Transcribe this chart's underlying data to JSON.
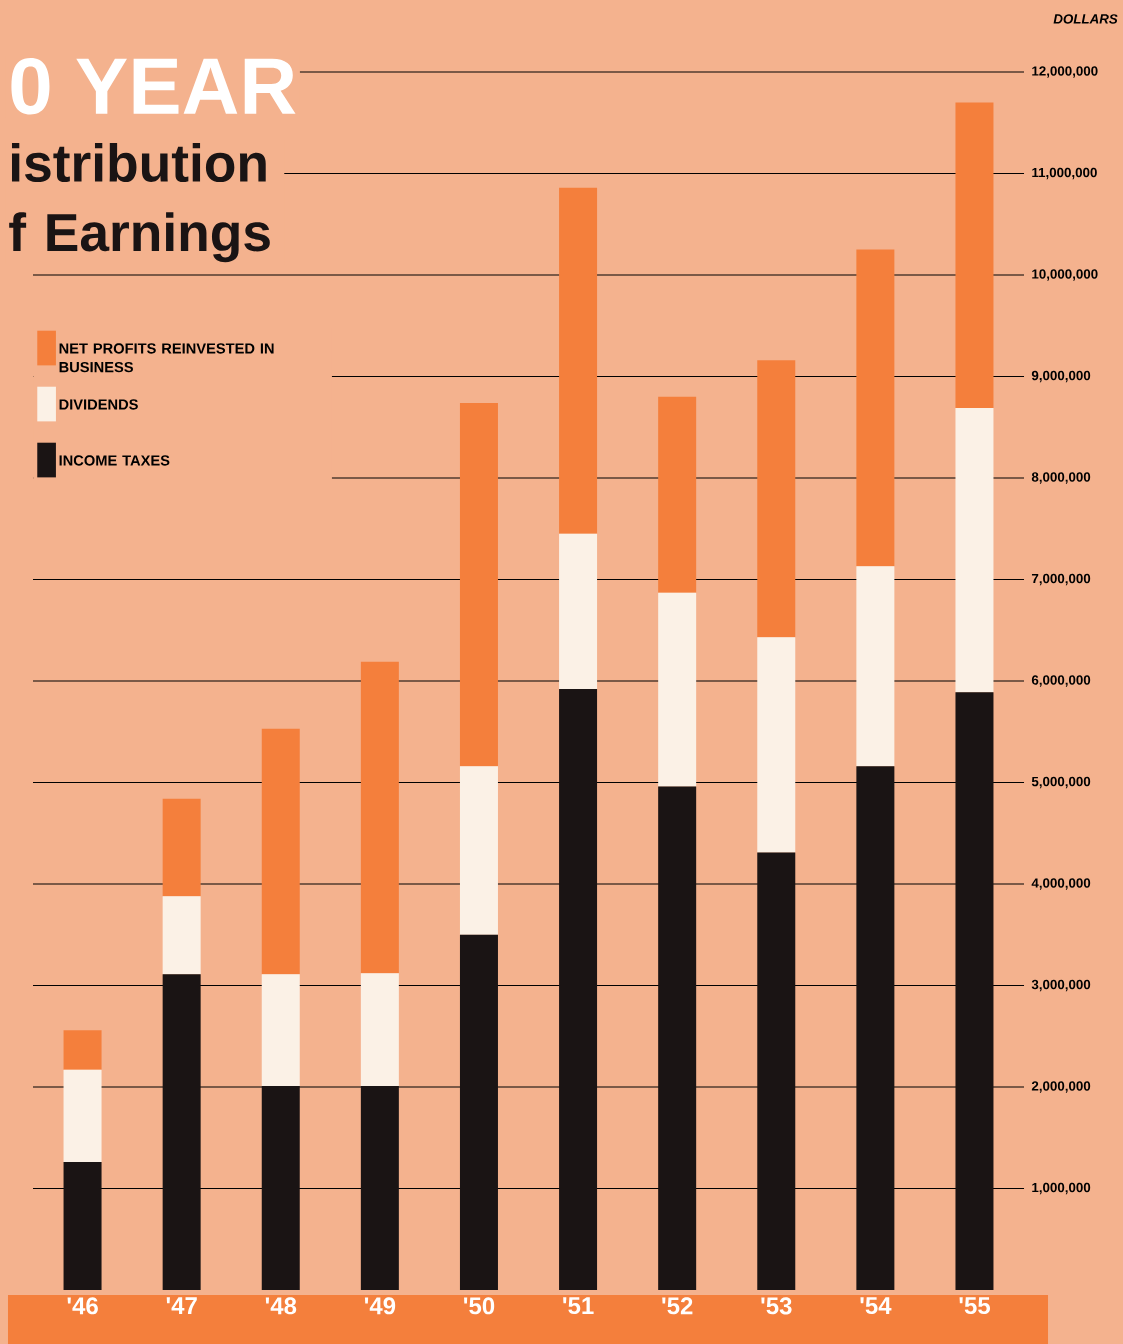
{
  "chart_data": {
    "type": "bar",
    "stacked": true,
    "title": "0 YEAR",
    "subtitle": "istribution f Earnings",
    "ylabel": "DOLLARS",
    "categories": [
      "'46",
      "'47",
      "'48",
      "'49",
      "'50",
      "'51",
      "'52",
      "'53",
      "'54",
      "'55"
    ],
    "series": [
      {
        "name": "INCOME TAXES",
        "color": "#1a1414",
        "values": [
          1260000,
          3110000,
          2010000,
          2010000,
          3500000,
          5920000,
          4960000,
          4310000,
          5160000,
          5890000
        ]
      },
      {
        "name": "DIVIDENDS",
        "color": "#fbf1e6",
        "values": [
          910000,
          770000,
          1100000,
          1110000,
          1660000,
          1530000,
          1910000,
          2120000,
          1970000,
          2800000
        ]
      },
      {
        "name": "NET PROFITS REINVESTED IN BUSINESS",
        "color": "#f47f3c",
        "values": [
          390000,
          960000,
          2420000,
          3070000,
          3580000,
          3410000,
          1930000,
          2730000,
          3120000,
          3010000
        ]
      }
    ],
    "ylim": [
      0,
      12000000
    ],
    "yticks": [
      {
        "value": 1000000,
        "label": "1,000,000"
      },
      {
        "value": 2000000,
        "label": "2,000,000"
      },
      {
        "value": 3000000,
        "label": "3,000,000"
      },
      {
        "value": 4000000,
        "label": "4,000,000"
      },
      {
        "value": 5000000,
        "label": "5,000,000"
      },
      {
        "value": 6000000,
        "label": "6,000,000"
      },
      {
        "value": 7000000,
        "label": "7,000,000"
      },
      {
        "value": 8000000,
        "label": "8,000,000"
      },
      {
        "value": 9000000,
        "label": "9,000,000"
      },
      {
        "value": 10000000,
        "label": "10,000,000"
      },
      {
        "value": 11000000,
        "label": "11,000,000"
      },
      {
        "value": 12000000,
        "label": "12,000,000"
      }
    ],
    "grid": "y",
    "legend": "top left"
  }
}
